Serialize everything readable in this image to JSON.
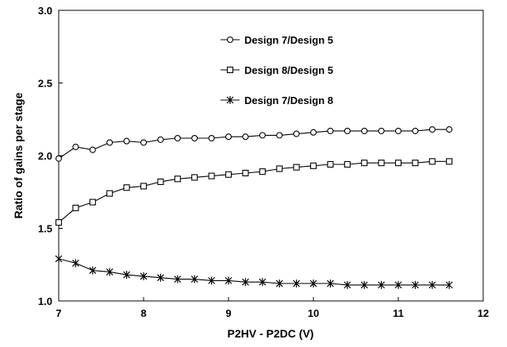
{
  "chart_data": {
    "type": "line",
    "xlabel": "P2HV - P2DC (V)",
    "ylabel": "Ratio of gains per stage",
    "xlim": [
      7,
      12
    ],
    "ylim": [
      1.0,
      3.0
    ],
    "x_ticks": [
      7,
      8,
      9,
      10,
      11,
      12
    ],
    "y_ticks": [
      1.0,
      1.5,
      2.0,
      2.5,
      3.0
    ],
    "x_tick_labels": [
      "7",
      "8",
      "9",
      "10",
      "11",
      "12"
    ],
    "y_tick_labels": [
      "1.0",
      "1.5",
      "2.0",
      "2.5",
      "3.0"
    ],
    "grid": false,
    "legend_position": "top-center",
    "x": [
      7.0,
      7.2,
      7.4,
      7.6,
      7.8,
      8.0,
      8.2,
      8.4,
      8.6,
      8.8,
      9.0,
      9.2,
      9.4,
      9.6,
      9.8,
      10.0,
      10.2,
      10.4,
      10.6,
      10.8,
      11.0,
      11.2,
      11.4,
      11.6
    ],
    "series": [
      {
        "name": "Design 7/Design 5",
        "marker": "circle",
        "values": [
          1.98,
          2.06,
          2.04,
          2.09,
          2.1,
          2.09,
          2.11,
          2.12,
          2.12,
          2.12,
          2.13,
          2.13,
          2.14,
          2.14,
          2.15,
          2.16,
          2.17,
          2.17,
          2.17,
          2.17,
          2.17,
          2.17,
          2.18,
          2.18
        ]
      },
      {
        "name": "Design 8/Design 5",
        "marker": "square",
        "values": [
          1.54,
          1.64,
          1.68,
          1.74,
          1.78,
          1.79,
          1.82,
          1.84,
          1.85,
          1.86,
          1.87,
          1.88,
          1.89,
          1.91,
          1.92,
          1.93,
          1.94,
          1.94,
          1.95,
          1.95,
          1.95,
          1.95,
          1.96,
          1.96
        ]
      },
      {
        "name": "Design 7/Design 8",
        "marker": "asterisk",
        "values": [
          1.29,
          1.26,
          1.21,
          1.2,
          1.18,
          1.17,
          1.16,
          1.15,
          1.15,
          1.14,
          1.14,
          1.13,
          1.13,
          1.12,
          1.12,
          1.12,
          1.12,
          1.11,
          1.11,
          1.11,
          1.11,
          1.11,
          1.11,
          1.11
        ]
      }
    ]
  }
}
